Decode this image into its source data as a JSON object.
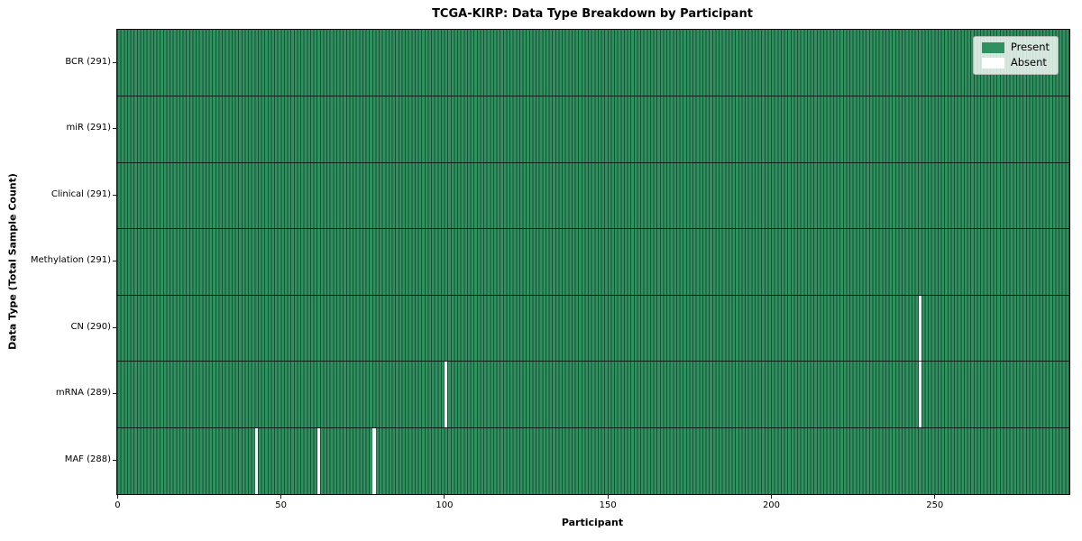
{
  "chart_data": {
    "type": "heatmap",
    "title": "TCGA-KIRP: Data Type Breakdown by Participant",
    "xlabel": "Participant",
    "ylabel": "Data Type (Total Sample Count)",
    "total_participants": 291,
    "xlim": [
      0,
      291
    ],
    "x_ticks": [
      0,
      50,
      100,
      150,
      200,
      250
    ],
    "legend_position": "upper right",
    "grid": false,
    "legend": [
      {
        "label": "Present",
        "color": "#309160"
      },
      {
        "label": "Absent",
        "color": "#ffffff"
      }
    ],
    "rows": [
      {
        "data_type": "BCR",
        "label": "BCR (291)",
        "present_count": 291,
        "absent_participants": []
      },
      {
        "data_type": "miR",
        "label": "miR (291)",
        "present_count": 291,
        "absent_participants": []
      },
      {
        "data_type": "Clinical",
        "label": "Clinical (291)",
        "present_count": 291,
        "absent_participants": []
      },
      {
        "data_type": "Methylation",
        "label": "Methylation (291)",
        "present_count": 291,
        "absent_participants": []
      },
      {
        "data_type": "CN",
        "label": "CN (290)",
        "present_count": 290,
        "absent_participants": [
          245
        ]
      },
      {
        "data_type": "mRNA",
        "label": "mRNA (289)",
        "present_count": 289,
        "absent_participants": [
          100,
          245
        ]
      },
      {
        "data_type": "MAF",
        "label": "MAF (288)",
        "present_count": 288,
        "absent_participants": [
          42,
          61,
          78
        ]
      }
    ],
    "colors": {
      "present": "#309160",
      "absent": "#ffffff",
      "bar_edge": "rgba(0,0,0,0.45)",
      "row_separator": "rgba(0,0,0,0.75)",
      "axis_spine": "#111111"
    }
  }
}
